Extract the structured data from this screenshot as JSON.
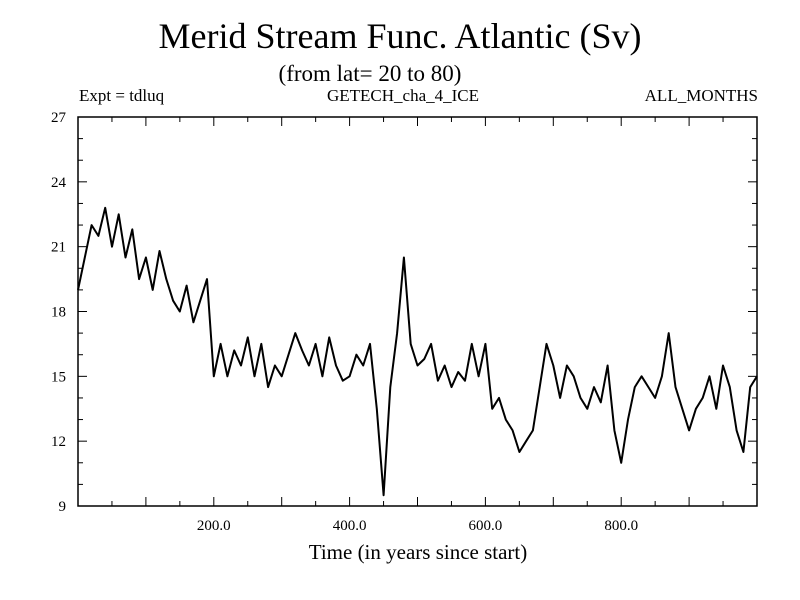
{
  "chart_data": {
    "type": "line",
    "title": "Merid Stream Func. Atlantic (Sv)",
    "subtitle": "(from lat= 20 to 80)",
    "header_left": "Expt = tdluq",
    "header_center": "GETECH_cha_4_ICE",
    "header_right": "ALL_MONTHS",
    "xlabel": "Time (in years since start)",
    "ylabel": "",
    "xlim": [
      0,
      1000
    ],
    "ylim": [
      9,
      27
    ],
    "xticks": [
      200,
      400,
      600,
      800
    ],
    "xtick_labels": [
      "200.0",
      "400.0",
      "600.0",
      "800.0"
    ],
    "yticks": [
      9,
      12,
      15,
      18,
      21,
      24,
      27
    ],
    "ytick_labels": [
      "9",
      "12",
      "15",
      "18",
      "21",
      "24",
      "27"
    ],
    "grid": false,
    "line_color": "#000000",
    "series": [
      {
        "x": [
          0,
          10,
          20,
          30,
          40,
          50,
          60,
          70,
          80,
          90,
          100,
          110,
          120,
          130,
          140,
          150,
          160,
          170,
          180,
          190,
          200,
          210,
          220,
          230,
          240,
          250,
          260,
          270,
          280,
          290,
          300,
          310,
          320,
          330,
          340,
          350,
          360,
          370,
          380,
          390,
          400,
          410,
          420,
          430,
          440,
          450,
          460,
          470,
          480,
          490,
          500,
          510,
          520,
          530,
          540,
          550,
          560,
          570,
          580,
          590,
          600,
          610,
          620,
          630,
          640,
          650,
          660,
          670,
          680,
          690,
          700,
          710,
          720,
          730,
          740,
          750,
          760,
          770,
          780,
          790,
          800,
          810,
          820,
          830,
          840,
          850,
          860,
          870,
          880,
          890,
          900,
          910,
          920,
          930,
          940,
          950,
          960,
          970,
          980,
          990,
          1000
        ],
        "values": [
          19.0,
          20.5,
          22.0,
          21.5,
          22.8,
          21.0,
          22.5,
          20.5,
          21.8,
          19.5,
          20.5,
          19.0,
          20.8,
          19.5,
          18.5,
          18.0,
          19.2,
          17.5,
          18.5,
          19.5,
          15.0,
          16.5,
          15.0,
          16.2,
          15.5,
          16.8,
          15.0,
          16.5,
          14.5,
          15.5,
          15.0,
          16.0,
          17.0,
          16.2,
          15.5,
          16.5,
          15.0,
          16.8,
          15.5,
          14.8,
          15.0,
          16.0,
          15.5,
          16.5,
          13.5,
          9.5,
          14.5,
          17.0,
          20.5,
          16.5,
          15.5,
          15.8,
          16.5,
          14.8,
          15.5,
          14.5,
          15.2,
          14.8,
          16.5,
          15.0,
          16.5,
          13.5,
          14.0,
          13.0,
          12.5,
          11.5,
          12.0,
          12.5,
          14.5,
          16.5,
          15.5,
          14.0,
          15.5,
          15.0,
          14.0,
          13.5,
          14.5,
          13.8,
          15.5,
          12.5,
          11.0,
          13.0,
          14.5,
          15.0,
          14.5,
          14.0,
          15.0,
          17.0,
          14.5,
          13.5,
          12.5,
          13.5,
          14.0,
          15.0,
          13.5,
          15.5,
          14.5,
          12.5,
          11.5,
          14.5,
          15.0
        ]
      }
    ]
  }
}
